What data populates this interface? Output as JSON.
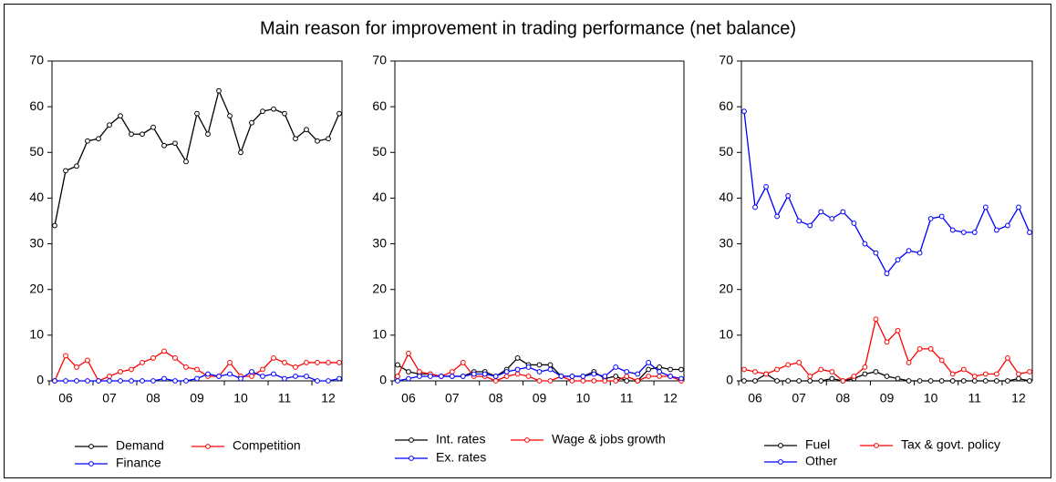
{
  "title": "Main reason for improvement in trading performance (net balance)",
  "chart_data": [
    {
      "type": "line",
      "categories": [
        null,
        "06",
        null,
        null,
        null,
        "07",
        null,
        null,
        null,
        "08",
        null,
        null,
        null,
        "09",
        null,
        null,
        null,
        "10",
        null,
        null,
        null,
        "11",
        null,
        null,
        null,
        "12",
        null
      ],
      "ylim": [
        0,
        70
      ],
      "yticks": [
        0,
        10,
        20,
        30,
        40,
        50,
        60,
        70
      ],
      "series": [
        {
          "name": "Demand",
          "color": "#000000",
          "values": [
            34,
            46,
            47,
            52.5,
            53,
            56,
            58,
            54,
            54,
            55.5,
            51.5,
            52,
            48,
            58.5,
            54,
            63.5,
            58,
            50,
            56.5,
            59,
            59.5,
            58.5,
            53,
            55,
            52.5,
            53,
            58.5
          ]
        },
        {
          "name": "Competition",
          "color": "#ff0000",
          "values": [
            0,
            5.5,
            3,
            4.5,
            0,
            1,
            2,
            2.5,
            4,
            5,
            6.5,
            5,
            3,
            2.5,
            1,
            1,
            4,
            1,
            1,
            2.5,
            5,
            4,
            3,
            4,
            4,
            4,
            4
          ]
        },
        {
          "name": "Finance",
          "color": "#0000ff",
          "values": [
            0,
            0,
            0,
            0,
            0,
            0,
            0,
            0,
            0,
            0,
            0.5,
            0,
            0,
            0.5,
            1.5,
            1,
            1.5,
            0.5,
            2,
            1,
            1.5,
            0.5,
            1,
            1,
            0,
            0,
            0.5
          ]
        }
      ]
    },
    {
      "type": "line",
      "categories": [
        null,
        "06",
        null,
        null,
        null,
        "07",
        null,
        null,
        null,
        "08",
        null,
        null,
        null,
        "09",
        null,
        null,
        null,
        "10",
        null,
        null,
        null,
        "11",
        null,
        null,
        null,
        "12",
        null
      ],
      "ylim": [
        0,
        70
      ],
      "yticks": [
        0,
        10,
        20,
        30,
        40,
        50,
        60,
        70
      ],
      "series": [
        {
          "name": "Int. rates",
          "color": "#000000",
          "values": [
            3.5,
            2,
            1.5,
            1.5,
            1,
            1,
            1,
            2,
            2,
            1,
            2.5,
            5,
            3.5,
            3.5,
            3.5,
            1,
            1,
            1,
            2,
            0.5,
            1,
            0,
            0,
            2.5,
            3,
            2.5,
            2.5
          ]
        },
        {
          "name": "Wage & jobs growth",
          "color": "#ff0000",
          "values": [
            1,
            6,
            2,
            1.5,
            1,
            2,
            4,
            1,
            1,
            0,
            1,
            1.5,
            1,
            0,
            0,
            1,
            0,
            0,
            0,
            0,
            0,
            1,
            0,
            1,
            1,
            1,
            0
          ]
        },
        {
          "name": "Ex. rates",
          "color": "#0000ff",
          "values": [
            0,
            0.5,
            1,
            1,
            1,
            1,
            1,
            1.5,
            1.5,
            1,
            2,
            2.5,
            3,
            2,
            2.5,
            1,
            1,
            1,
            1.5,
            1,
            3,
            2,
            1.5,
            4,
            2,
            1,
            0.5
          ]
        }
      ]
    },
    {
      "type": "line",
      "categories": [
        null,
        "06",
        null,
        null,
        null,
        "07",
        null,
        null,
        null,
        "08",
        null,
        null,
        null,
        "09",
        null,
        null,
        null,
        "10",
        null,
        null,
        null,
        "11",
        null,
        null,
        null,
        "12",
        null
      ],
      "ylim": [
        0,
        70
      ],
      "yticks": [
        0,
        10,
        20,
        30,
        40,
        50,
        60,
        70
      ],
      "series": [
        {
          "name": "Fuel",
          "color": "#000000",
          "values": [
            0,
            0,
            1.5,
            0,
            0,
            0,
            0,
            0,
            0.5,
            0,
            0.5,
            1.5,
            2,
            1,
            0.5,
            0,
            0,
            0,
            0,
            0,
            0,
            0,
            0,
            0,
            0,
            0.5,
            0
          ]
        },
        {
          "name": "Tax & govt. policy",
          "color": "#ff0000",
          "values": [
            2.5,
            2,
            1.5,
            2.5,
            3.5,
            4,
            1,
            2.5,
            2,
            0,
            1,
            3,
            13.5,
            8.5,
            11,
            4,
            7,
            7,
            4.5,
            1.5,
            2.5,
            1,
            1.5,
            1.5,
            5,
            1.5,
            2
          ]
        },
        {
          "name": "Other",
          "color": "#0000ff",
          "values": [
            59,
            38,
            42.5,
            36,
            40.5,
            35,
            34,
            37,
            35.5,
            37,
            34.5,
            30,
            28,
            23.5,
            26.5,
            28.5,
            28,
            35.5,
            36,
            33,
            32.5,
            32.5,
            38,
            33,
            34,
            38,
            32.5
          ]
        }
      ]
    }
  ]
}
